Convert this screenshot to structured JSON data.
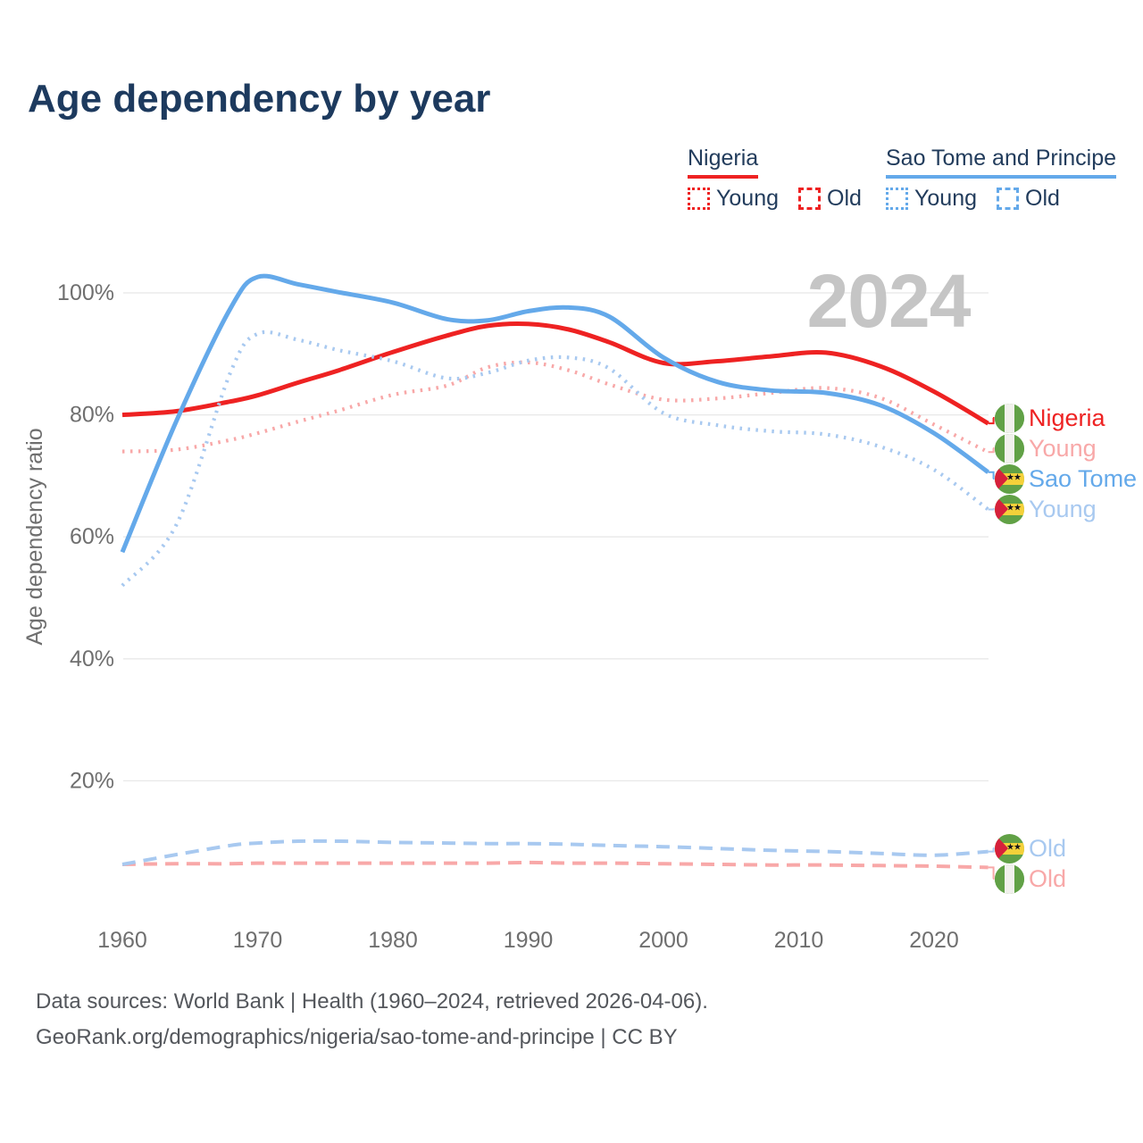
{
  "title": "Age dependency by year",
  "watermark": "2024",
  "colors": {
    "nigeria": "#ee2222",
    "nigeria_light": "#f8a8a8",
    "sao_tome": "#64a9ea",
    "sao_tome_light": "#a8c9f0",
    "navy_text": "#223c5c",
    "axis_text": "#6f6f6f",
    "gridline": "#e8e8e8",
    "watermark_gray": "#c5c5c5",
    "footer_text": "#54575c"
  },
  "legend": {
    "groups": [
      {
        "label": "Nigeria",
        "color": "#ee2222",
        "items": [
          {
            "label": "Young",
            "style": "dotted"
          },
          {
            "label": "Old",
            "style": "dashed"
          }
        ]
      },
      {
        "label": "Sao Tome and Principe",
        "color": "#64a9ea",
        "items": [
          {
            "label": "Young",
            "style": "dotted"
          },
          {
            "label": "Old",
            "style": "dashed"
          }
        ]
      }
    ]
  },
  "right_labels": [
    {
      "text": "Nigeria",
      "color": "#ee2222",
      "flag": "nigeria"
    },
    {
      "text": "Young",
      "color": "#f8a8a8",
      "flag": "nigeria"
    },
    {
      "text": "Sao Tome",
      "color": "#64a9ea",
      "flag": "saotome"
    },
    {
      "text": "Young",
      "color": "#a8c9f0",
      "flag": "saotome"
    },
    {
      "text": "Old",
      "color": "#a8c9f0",
      "flag": "saotome"
    },
    {
      "text": "Old",
      "color": "#f8a8a8",
      "flag": "nigeria"
    }
  ],
  "footer": {
    "line1": "Data sources: World Bank | Health (1960–2024, retrieved 2026-04-06).",
    "line2": "GeoRank.org/demographics/nigeria/sao-tome-and-principe | CC BY"
  },
  "chart_data": {
    "type": "line",
    "title": "Age dependency by year",
    "ylabel": "Age dependency ratio",
    "x": [
      1960,
      1964,
      1968,
      1970,
      1973,
      1976,
      1980,
      1984,
      1987,
      1990,
      1993,
      1996,
      2000,
      2004,
      2008,
      2012,
      2016,
      2020,
      2024
    ],
    "x_ticks": [
      "1960",
      "1970",
      "1980",
      "1990",
      "2000",
      "2010",
      "2020"
    ],
    "y_ticks_percent": [
      20,
      40,
      60,
      80,
      100
    ],
    "y_tick_suffix": "%",
    "ylim": [
      0,
      107
    ],
    "xlim": [
      1958.5,
      2025.5
    ],
    "grid": true,
    "legend_position": "top-right",
    "series": [
      {
        "id": "nigeria-total",
        "name": "Nigeria",
        "country": "Nigeria",
        "measure": "Total",
        "style": "solid",
        "color": "#ee2222",
        "values": [
          80.0,
          80.6,
          82.2,
          83.2,
          85.3,
          87.3,
          90.3,
          93.0,
          94.6,
          94.9,
          94.0,
          91.9,
          88.5,
          88.8,
          89.6,
          90.2,
          88.0,
          83.8,
          78.6
        ]
      },
      {
        "id": "nigeria-young",
        "name": "Young",
        "country": "Nigeria",
        "measure": "Young",
        "style": "dotted",
        "color": "#f8a8a8",
        "values": [
          74.0,
          74.3,
          75.9,
          77.0,
          78.9,
          80.7,
          83.3,
          84.8,
          87.8,
          88.6,
          87.3,
          85.0,
          82.5,
          82.7,
          83.6,
          84.4,
          82.8,
          78.4,
          73.9
        ]
      },
      {
        "id": "nigeria-old",
        "name": "Old",
        "country": "Nigeria",
        "measure": "Old",
        "style": "dashed",
        "color": "#f8a8a8",
        "values": [
          6.3,
          6.4,
          6.4,
          6.5,
          6.5,
          6.5,
          6.5,
          6.5,
          6.5,
          6.6,
          6.5,
          6.5,
          6.4,
          6.3,
          6.2,
          6.2,
          6.1,
          6.0,
          5.8
        ]
      },
      {
        "id": "saotome-total",
        "name": "Sao Tome",
        "country": "Sao Tome and Principe",
        "measure": "Total",
        "style": "solid",
        "color": "#64a9ea",
        "values": [
          57.5,
          79.0,
          97.5,
          102.6,
          101.4,
          100.1,
          98.4,
          95.7,
          95.5,
          97.0,
          97.6,
          96.1,
          89.4,
          85.4,
          84.0,
          83.6,
          81.6,
          77.0,
          70.6
        ]
      },
      {
        "id": "saotome-young",
        "name": "Young",
        "country": "Sao Tome and Principe",
        "measure": "Young",
        "style": "dotted",
        "color": "#a8c9f0",
        "values": [
          52.0,
          62.0,
          87.0,
          93.3,
          92.3,
          90.6,
          88.8,
          86.0,
          86.9,
          88.9,
          89.4,
          87.6,
          80.3,
          78.3,
          77.3,
          76.8,
          74.8,
          71.0,
          64.5
        ]
      },
      {
        "id": "saotome-old",
        "name": "Old",
        "country": "Sao Tome and Principe",
        "measure": "Old",
        "style": "dashed",
        "color": "#a8c9f0",
        "values": [
          6.3,
          7.9,
          9.4,
          9.8,
          10.1,
          10.1,
          9.9,
          9.8,
          9.7,
          9.7,
          9.6,
          9.4,
          9.2,
          8.9,
          8.6,
          8.4,
          8.1,
          7.8,
          8.4
        ]
      }
    ]
  }
}
